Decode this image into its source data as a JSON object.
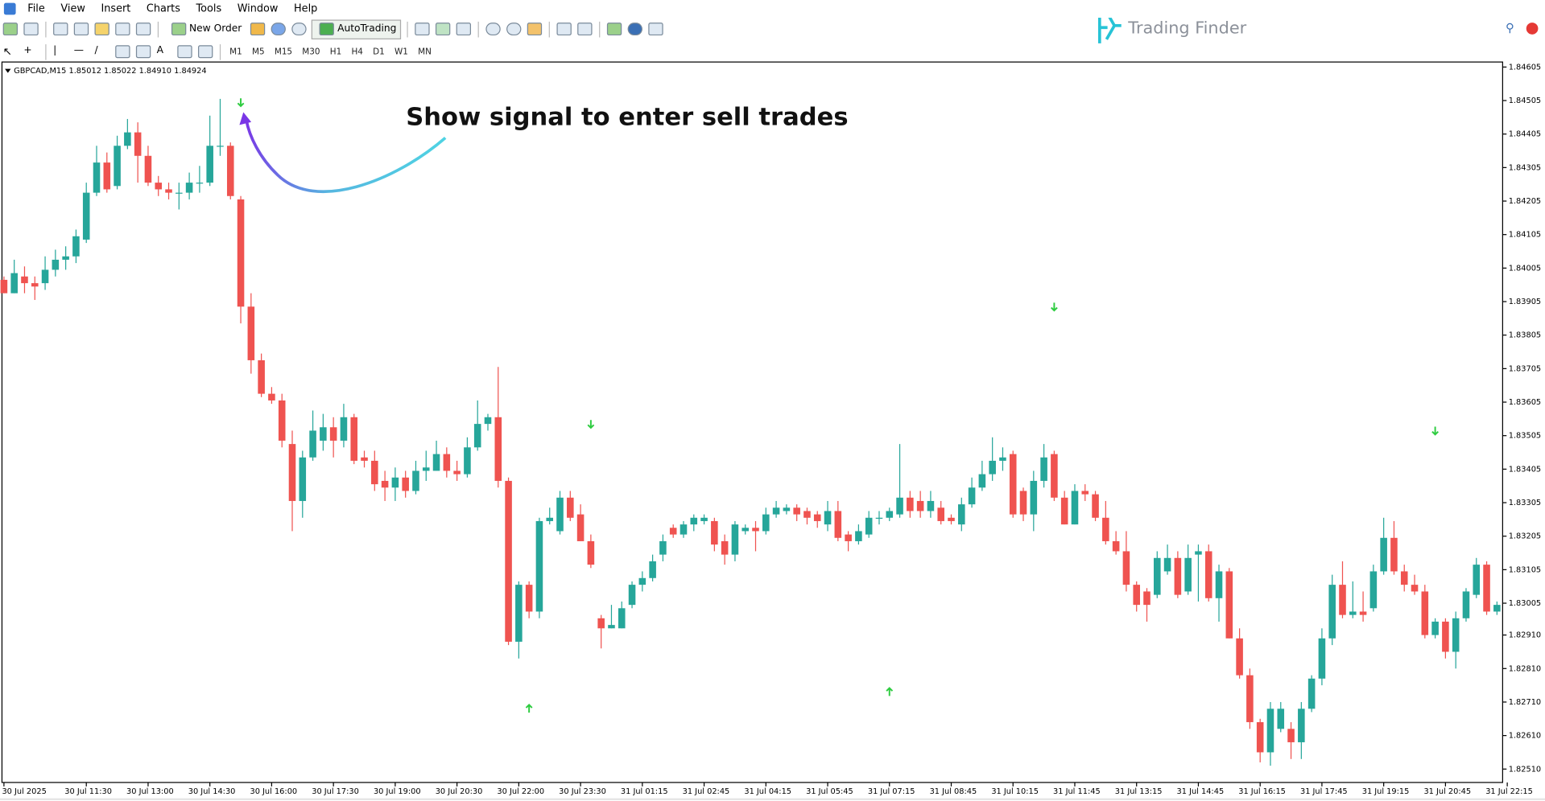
{
  "menu": [
    "File",
    "View",
    "Insert",
    "Charts",
    "Tools",
    "Window",
    "Help"
  ],
  "toolbar": {
    "new_order": "New Order",
    "auto_trading": "AutoTrading",
    "timeframes": [
      "M1",
      "M5",
      "M15",
      "M30",
      "H1",
      "H4",
      "D1",
      "W1",
      "MN"
    ]
  },
  "brand": "Trading Finder",
  "chart_data": {
    "type": "candlestick",
    "header": "GBPCAD,M15  1.85012 1.85022 1.84910 1.84924",
    "annotation": "Show signal to enter sell trades",
    "up_color": "#26a69a",
    "down_color": "#ef5350",
    "signal_color": "#2ecc40",
    "open": [
      1.8397,
      1.8393,
      1.8398,
      1.8396,
      1.8396,
      1.84,
      1.8403,
      1.8404,
      1.8409,
      1.8423,
      1.8432,
      1.8425,
      1.8437,
      1.8441,
      1.8434,
      1.8426,
      1.8424,
      1.8423,
      1.8423,
      1.8426,
      1.8426,
      1.8437,
      1.8437,
      1.8421,
      1.8389,
      1.8373,
      1.8363,
      1.8361,
      1.8348,
      1.8331,
      1.8344,
      1.8349,
      1.8353,
      1.8349,
      1.8356,
      1.8344,
      1.8343,
      1.8337,
      1.8335,
      1.8338,
      1.8334,
      1.834,
      1.834,
      1.8345,
      1.834,
      1.8339,
      1.8347,
      1.8354,
      1.8356,
      1.8337,
      1.8289,
      1.8306,
      1.8298,
      1.8325,
      1.8322,
      1.8332,
      1.8327,
      1.8319,
      1.8296,
      1.8293,
      1.8293,
      1.83,
      1.8306,
      1.8308,
      1.8315,
      1.8323,
      1.8321,
      1.8324,
      1.8325,
      1.8325,
      1.8319,
      1.8315,
      1.8322,
      1.8323,
      1.8322,
      1.8327,
      1.8328,
      1.8329,
      1.8328,
      1.8327,
      1.8324,
      1.8328,
      1.8321,
      1.8319,
      1.8321,
      1.8326,
      1.8326,
      1.8327,
      1.8332,
      1.8331,
      1.8328,
      1.8329,
      1.8326,
      1.8324,
      1.833,
      1.8335,
      1.8339,
      1.8343,
      1.8345,
      1.8334,
      1.8327,
      1.8337,
      1.8345,
      1.8332,
      1.8324,
      1.8334,
      1.8333,
      1.8326,
      1.8319,
      1.8316,
      1.8306,
      1.8304,
      1.8303,
      1.831,
      1.8314,
      1.8304,
      1.8315,
      1.8316,
      1.8302,
      1.831,
      1.829,
      1.8279,
      1.8265,
      1.8256,
      1.8263,
      1.8263,
      1.8259,
      1.8269,
      1.8278,
      1.829,
      1.8306,
      1.8297,
      1.8298,
      1.8299,
      1.831,
      1.832,
      1.831,
      1.8306,
      1.8304,
      1.8291,
      1.8295,
      1.8286,
      1.8296,
      1.8303,
      1.8312,
      1.8298
    ],
    "high": [
      1.8398,
      1.8403,
      1.8401,
      1.8398,
      1.8404,
      1.8406,
      1.8407,
      1.8412,
      1.8426,
      1.8437,
      1.8435,
      1.844,
      1.8445,
      1.8444,
      1.8437,
      1.8428,
      1.8426,
      1.8426,
      1.8429,
      1.8431,
      1.8446,
      1.8451,
      1.8438,
      1.8422,
      1.8393,
      1.8375,
      1.8365,
      1.8363,
      1.8352,
      1.8346,
      1.8358,
      1.8357,
      1.8356,
      1.836,
      1.8357,
      1.8346,
      1.8346,
      1.834,
      1.8341,
      1.834,
      1.8343,
      1.8346,
      1.8349,
      1.8347,
      1.8343,
      1.835,
      1.8361,
      1.8357,
      1.8371,
      1.8338,
      1.8307,
      1.8307,
      1.8326,
      1.8329,
      1.8334,
      1.8334,
      1.833,
      1.8321,
      1.8297,
      1.83,
      1.8301,
      1.8307,
      1.831,
      1.8315,
      1.8321,
      1.8324,
      1.8325,
      1.8327,
      1.8327,
      1.8326,
      1.8321,
      1.8325,
      1.8324,
      1.8325,
      1.8329,
      1.8331,
      1.833,
      1.833,
      1.8329,
      1.8328,
      1.8331,
      1.8331,
      1.8322,
      1.8324,
      1.8328,
      1.8328,
      1.8329,
      1.8348,
      1.8334,
      1.8334,
      1.8334,
      1.8331,
      1.8327,
      1.8332,
      1.8338,
      1.8343,
      1.835,
      1.8347,
      1.8346,
      1.8335,
      1.834,
      1.8348,
      1.8346,
      1.8334,
      1.8336,
      1.8336,
      1.8334,
      1.8331,
      1.8322,
      1.8322,
      1.8307,
      1.8305,
      1.8316,
      1.8318,
      1.8316,
      1.8318,
      1.8318,
      1.8318,
      1.8312,
      1.8311,
      1.8293,
      1.8281,
      1.8266,
      1.8271,
      1.8271,
      1.8265,
      1.8271,
      1.8279,
      1.8293,
      1.8309,
      1.8313,
      1.8307,
      1.8304,
      1.8312,
      1.8326,
      1.8325,
      1.8312,
      1.8309,
      1.8306,
      1.8296,
      1.8296,
      1.8298,
      1.8305,
      1.8314,
      1.8313,
      1.8301
    ],
    "low": [
      1.8393,
      1.8393,
      1.8393,
      1.8391,
      1.8394,
      1.8398,
      1.84,
      1.8402,
      1.8408,
      1.8422,
      1.8423,
      1.8424,
      1.8436,
      1.8426,
      1.8425,
      1.8422,
      1.8421,
      1.8418,
      1.8421,
      1.8423,
      1.8425,
      1.8434,
      1.8421,
      1.8384,
      1.8369,
      1.8362,
      1.836,
      1.8347,
      1.8322,
      1.8326,
      1.8343,
      1.8346,
      1.8344,
      1.8347,
      1.8342,
      1.8341,
      1.8334,
      1.8331,
      1.8331,
      1.8332,
      1.8333,
      1.8337,
      1.834,
      1.8338,
      1.8337,
      1.8338,
      1.8346,
      1.8352,
      1.8335,
      1.8288,
      1.8284,
      1.8296,
      1.8296,
      1.8324,
      1.8321,
      1.8325,
      1.8319,
      1.8311,
      1.8287,
      1.8293,
      1.8293,
      1.8299,
      1.8304,
      1.8307,
      1.8313,
      1.832,
      1.832,
      1.8322,
      1.8324,
      1.8316,
      1.8312,
      1.8313,
      1.8321,
      1.8316,
      1.8321,
      1.8326,
      1.8327,
      1.8325,
      1.8324,
      1.8323,
      1.8322,
      1.8319,
      1.8316,
      1.8318,
      1.832,
      1.8324,
      1.8325,
      1.8326,
      1.8326,
      1.8326,
      1.8326,
      1.8324,
      1.8324,
      1.8322,
      1.8329,
      1.8334,
      1.8337,
      1.834,
      1.8326,
      1.8325,
      1.8322,
      1.8335,
      1.8331,
      1.8324,
      1.8324,
      1.8331,
      1.8325,
      1.8318,
      1.8315,
      1.8304,
      1.8298,
      1.8295,
      1.8302,
      1.8309,
      1.8302,
      1.8303,
      1.8301,
      1.8301,
      1.8295,
      1.829,
      1.8278,
      1.8263,
      1.8253,
      1.8252,
      1.8262,
      1.8254,
      1.8254,
      1.8268,
      1.8276,
      1.8288,
      1.8296,
      1.8296,
      1.8295,
      1.8298,
      1.8309,
      1.8309,
      1.8304,
      1.8303,
      1.829,
      1.829,
      1.8284,
      1.8281,
      1.8295,
      1.8302,
      1.8297,
      1.8297
    ],
    "close": [
      1.8393,
      1.8399,
      1.8396,
      1.8395,
      1.84,
      1.8403,
      1.8404,
      1.841,
      1.8423,
      1.8432,
      1.8424,
      1.8437,
      1.8441,
      1.8434,
      1.8426,
      1.8424,
      1.8423,
      1.8423,
      1.8426,
      1.8426,
      1.8437,
      1.8437,
      1.8422,
      1.8389,
      1.8373,
      1.8363,
      1.8361,
      1.8349,
      1.8331,
      1.8344,
      1.8352,
      1.8353,
      1.8349,
      1.8356,
      1.8343,
      1.8343,
      1.8336,
      1.8335,
      1.8338,
      1.8334,
      1.834,
      1.8341,
      1.8345,
      1.834,
      1.8339,
      1.8347,
      1.8354,
      1.8356,
      1.8337,
      1.8289,
      1.8306,
      1.8298,
      1.8325,
      1.8326,
      1.8332,
      1.8326,
      1.8319,
      1.8312,
      1.8293,
      1.8294,
      1.8299,
      1.8306,
      1.8308,
      1.8313,
      1.8319,
      1.8321,
      1.8324,
      1.8326,
      1.8326,
      1.8318,
      1.8315,
      1.8324,
      1.8323,
      1.8322,
      1.8327,
      1.8329,
      1.8329,
      1.8327,
      1.8326,
      1.8325,
      1.8328,
      1.832,
      1.8319,
      1.8322,
      1.8326,
      1.8326,
      1.8328,
      1.8332,
      1.8328,
      1.8328,
      1.8331,
      1.8325,
      1.8325,
      1.833,
      1.8335,
      1.8339,
      1.8343,
      1.8344,
      1.8327,
      1.8327,
      1.8337,
      1.8344,
      1.8332,
      1.8324,
      1.8334,
      1.8333,
      1.8326,
      1.8319,
      1.8316,
      1.8306,
      1.83,
      1.83,
      1.8314,
      1.8314,
      1.8303,
      1.8314,
      1.8316,
      1.8302,
      1.831,
      1.829,
      1.8279,
      1.8265,
      1.8256,
      1.8269,
      1.8269,
      1.8259,
      1.8269,
      1.8278,
      1.829,
      1.8306,
      1.8297,
      1.8298,
      1.8297,
      1.831,
      1.832,
      1.831,
      1.8306,
      1.8304,
      1.8291,
      1.8295,
      1.8286,
      1.8296,
      1.8304,
      1.8312,
      1.8298,
      1.83
    ],
    "sell_signals": {
      "x": [
        23,
        57,
        102,
        139
      ],
      "y": [
        1.845,
        1.8354,
        1.8389,
        1.8352
      ]
    },
    "buy_signals": {
      "x": [
        51,
        86
      ],
      "y": [
        1.8269,
        1.8274
      ]
    },
    "ylim": [
      1.8247,
      1.8462
    ],
    "yticks": [
      1.84605,
      1.84505,
      1.84405,
      1.84305,
      1.84205,
      1.84105,
      1.84005,
      1.83905,
      1.83805,
      1.83705,
      1.83605,
      1.83505,
      1.83405,
      1.83305,
      1.83205,
      1.83105,
      1.83005,
      {
        "value": 1.8291,
        "label": "1.82910"
      },
      {
        "value": 1.8281,
        "label": "1.82810"
      },
      {
        "value": 1.8271,
        "label": "1.82710"
      },
      {
        "value": 1.8261,
        "label": "1.82610"
      },
      {
        "value": 1.8251,
        "label": "1.82510"
      }
    ],
    "xticks": [
      {
        "value": 0,
        "label": "30 Jul 2025"
      },
      {
        "value": 8,
        "label": "30 Jul 11:30"
      },
      {
        "value": 14,
        "label": "30 Jul 13:00"
      },
      {
        "value": 20,
        "label": "30 Jul 14:30"
      },
      {
        "value": 26,
        "label": "30 Jul 16:00"
      },
      {
        "value": 32,
        "label": "30 Jul 17:30"
      },
      {
        "value": 38,
        "label": "30 Jul 19:00"
      },
      {
        "value": 44,
        "label": "30 Jul 20:30"
      },
      {
        "value": 50,
        "label": "30 Jul 22:00"
      },
      {
        "value": 56,
        "label": "30 Jul 23:30"
      },
      {
        "value": 62,
        "label": "31 Jul 01:15"
      },
      {
        "value": 68,
        "label": "31 Jul 02:45"
      },
      {
        "value": 74,
        "label": "31 Jul 04:15"
      },
      {
        "value": 80,
        "label": "31 Jul 05:45"
      },
      {
        "value": 86,
        "label": "31 Jul 07:15"
      },
      {
        "value": 92,
        "label": "31 Jul 08:45"
      },
      {
        "value": 98,
        "label": "31 Jul 10:15"
      },
      {
        "value": 104,
        "label": "31 Jul 11:45"
      },
      {
        "value": 110,
        "label": "31 Jul 13:15"
      },
      {
        "value": 116,
        "label": "31 Jul 14:45"
      },
      {
        "value": 122,
        "label": "31 Jul 16:15"
      },
      {
        "value": 128,
        "label": "31 Jul 17:45"
      },
      {
        "value": 134,
        "label": "31 Jul 19:15"
      },
      {
        "value": 140,
        "label": "31 Jul 20:45"
      },
      {
        "value": 146,
        "label": "31 Jul 22:15"
      }
    ]
  }
}
